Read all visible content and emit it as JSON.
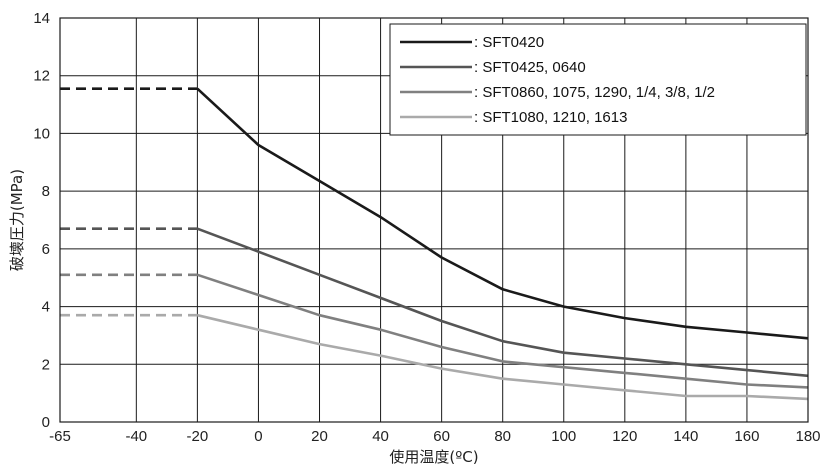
{
  "chart_data": {
    "type": "line",
    "title": "",
    "xlabel": "使用温度(ºC)",
    "ylabel": "破壊圧力(MPa)",
    "xlim": [
      -65,
      180
    ],
    "ylim": [
      0,
      14
    ],
    "x_ticks": [
      -65,
      -40,
      -20,
      0,
      20,
      40,
      60,
      80,
      100,
      120,
      140,
      160,
      180
    ],
    "y_ticks": [
      0,
      2,
      4,
      6,
      8,
      10,
      12,
      14
    ],
    "grid": true,
    "legend_position": "top-right",
    "series": [
      {
        "name": ": SFT0420",
        "color": "#1a1a1a",
        "dashed_segment": {
          "x": [
            -65,
            -20
          ],
          "y": [
            11.55,
            11.55
          ]
        },
        "x": [
          -20,
          0,
          20,
          40,
          60,
          80,
          100,
          120,
          140,
          160,
          180
        ],
        "y": [
          11.55,
          9.6,
          8.35,
          7.1,
          5.7,
          4.6,
          4.0,
          3.6,
          3.3,
          3.1,
          2.9
        ]
      },
      {
        "name": ": SFT0425, 0640",
        "color": "#555555",
        "dashed_segment": {
          "x": [
            -65,
            -20
          ],
          "y": [
            6.7,
            6.7
          ]
        },
        "x": [
          -20,
          0,
          20,
          40,
          60,
          80,
          100,
          120,
          140,
          160,
          180
        ],
        "y": [
          6.7,
          5.9,
          5.1,
          4.3,
          3.5,
          2.8,
          2.4,
          2.2,
          2.0,
          1.8,
          1.6
        ]
      },
      {
        "name": ": SFT0860, 1075, 1290, 1/4, 3/8, 1/2",
        "color": "#808080",
        "dashed_segment": {
          "x": [
            -65,
            -20
          ],
          "y": [
            5.1,
            5.1
          ]
        },
        "x": [
          -20,
          0,
          20,
          40,
          60,
          80,
          100,
          120,
          140,
          160,
          180
        ],
        "y": [
          5.1,
          4.4,
          3.7,
          3.2,
          2.6,
          2.1,
          1.9,
          1.7,
          1.5,
          1.3,
          1.2
        ]
      },
      {
        "name": ": SFT1080, 1210, 1613",
        "color": "#aaaaaa",
        "dashed_segment": {
          "x": [
            -65,
            -20
          ],
          "y": [
            3.7,
            3.7
          ]
        },
        "x": [
          -20,
          0,
          20,
          40,
          60,
          80,
          100,
          120,
          140,
          160,
          180
        ],
        "y": [
          3.7,
          3.2,
          2.7,
          2.3,
          1.85,
          1.5,
          1.3,
          1.1,
          0.9,
          0.9,
          0.8
        ]
      }
    ]
  }
}
